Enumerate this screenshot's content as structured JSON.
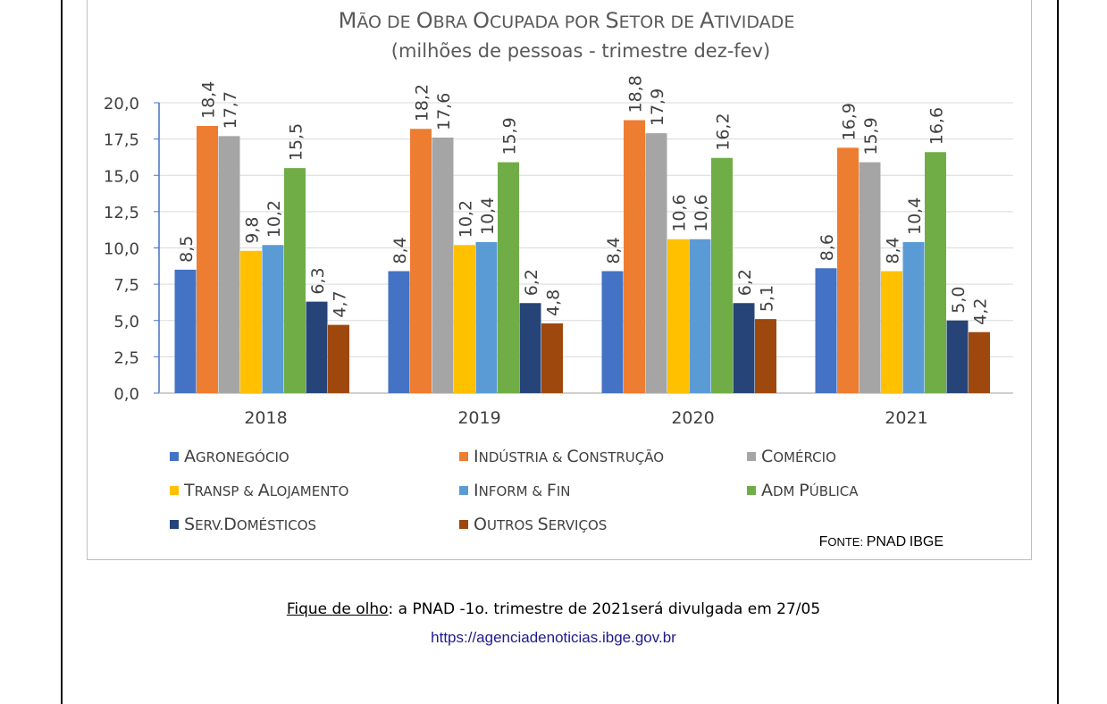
{
  "chart_data": {
    "type": "bar",
    "title": "Mão de Obra Ocupada por Setor de Atividade",
    "subtitle": "(milhões de pessoas - trimestre dez-fev)",
    "categories": [
      "2018",
      "2019",
      "2020",
      "2021"
    ],
    "ylim": [
      0,
      20
    ],
    "yticks": [
      "0,0",
      "2,5",
      "5,0",
      "7,5",
      "10,0",
      "12,5",
      "15,0",
      "17,5",
      "20,0"
    ],
    "grid": true,
    "legend_position": "bottom",
    "series": [
      {
        "name": "Agronegócio",
        "color": "#4472c4",
        "values": [
          8.5,
          8.4,
          8.4,
          8.6
        ],
        "labels": [
          "8,5",
          "8,4",
          "8,4",
          "8,6"
        ]
      },
      {
        "name": "Indústria & Construção",
        "color": "#ed7d31",
        "values": [
          18.4,
          18.2,
          18.8,
          16.9
        ],
        "labels": [
          "18,4",
          "18,2",
          "18,8",
          "16,9"
        ]
      },
      {
        "name": "Comércio",
        "color": "#a5a5a5",
        "values": [
          17.7,
          17.6,
          17.9,
          15.9
        ],
        "labels": [
          "17,7",
          "17,6",
          "17,9",
          "15,9"
        ]
      },
      {
        "name": "Transp & Alojamento",
        "color": "#ffc000",
        "values": [
          9.8,
          10.2,
          10.6,
          8.4
        ],
        "labels": [
          "9,8",
          "10,2",
          "10,6",
          "8,4"
        ]
      },
      {
        "name": "Inform & Fin",
        "color": "#5b9bd5",
        "values": [
          10.2,
          10.4,
          10.6,
          10.4
        ],
        "labels": [
          "10,2",
          "10,4",
          "10,6",
          "10,4"
        ]
      },
      {
        "name": "Adm Pública",
        "color": "#70ad47",
        "values": [
          15.5,
          15.9,
          16.2,
          16.6
        ],
        "labels": [
          "15,5",
          "15,9",
          "16,2",
          "16,6"
        ]
      },
      {
        "name": "Serv.Domésticos",
        "color": "#264478",
        "values": [
          6.3,
          6.2,
          6.2,
          5.0
        ],
        "labels": [
          "6,3",
          "6,2",
          "6,2",
          "5,0"
        ]
      },
      {
        "name": "Outros Serviços",
        "color": "#9e480e",
        "values": [
          4.7,
          4.8,
          5.1,
          4.2
        ],
        "labels": [
          "4,7",
          "4,8",
          "5,1",
          "4,2"
        ]
      }
    ],
    "source": "Fonte: PNAD IBGE"
  },
  "footnote": {
    "lead": "Fique de olho",
    "text": ": a PNAD -1o. trimestre de 2021será divulgada em 27/05",
    "url": "https://agenciadenoticias.ibge.gov.br"
  }
}
